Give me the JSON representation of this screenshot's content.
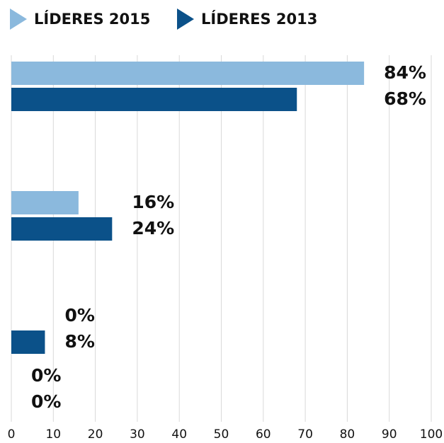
{
  "chart_data": {
    "type": "bar",
    "orientation": "horizontal",
    "categories": [
      null,
      null,
      null,
      null
    ],
    "series": [
      {
        "name": "LÍDERES 2015",
        "color": "#8bb9dd",
        "values": [
          84,
          16,
          0,
          0
        ],
        "value_labels": [
          "84%",
          "16%",
          "0%",
          "0%"
        ]
      },
      {
        "name": "LÍDERES 2013",
        "color": "#0b5189",
        "values": [
          68,
          24,
          8,
          0
        ],
        "value_labels": [
          "68%",
          "24%",
          "8%",
          "0%"
        ]
      }
    ],
    "xlim": [
      0,
      100
    ],
    "xticks": [
      0,
      10,
      20,
      30,
      40,
      50,
      60,
      70,
      80,
      90,
      100
    ],
    "grid": true,
    "legend": "top"
  }
}
